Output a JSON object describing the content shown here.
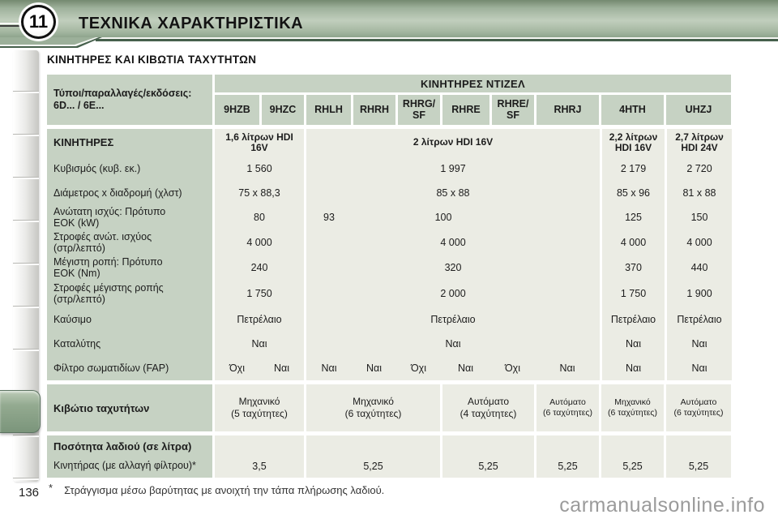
{
  "page": {
    "chapter_number": "11",
    "title": "ΤΕΧΝΙΚΑ ΧΑΡΑΚΤΗΡΙΣΤΙΚΑ",
    "section_heading": "ΚΙΝΗΤΗΡΕΣ ΚΑΙ ΚΙΒΩΤΙΑ ΤΑΧΥΤΗΤΩΝ",
    "page_number": "136",
    "footnote_marker": "*",
    "footnote_text": "Στράγγισμα μέσω βαρύτητας με ανοιχτή την τάπα πλήρωσης λαδιού.",
    "watermark": "carmanualsonline.info"
  },
  "colors": {
    "header_cell_green": "#c6d2c3",
    "data_cell_gray": "#ebece4",
    "band_sage": "#9fb29c",
    "band_edge_dark_green": "#46604c"
  },
  "table": {
    "types_header": "Τύποι/παραλλαγές/εκδόσεις:\n6D... / 6E...",
    "group_header": "ΚΙΝΗΤΗΡΕΣ ΝΤΙΖΕΛ",
    "engine_codes": [
      "9HZB",
      "9HZC",
      "RHLH",
      "RHRH",
      "RHRG/\nSF",
      "RHRE",
      "RHRE/\nSF",
      "RHRJ",
      "4HTH",
      "UHZJ"
    ],
    "row_labels": {
      "engines": "ΚΙΝΗΤΗΡΕΣ",
      "displacement": "Κυβισμός (κυβ. εκ.)",
      "bore_stroke": "Διάμετρος x διαδρομή (χλστ)",
      "max_power": "Ανώτατη ισχύς: Πρότυπο\nΕΟΚ (kW)",
      "power_rpm": "Στροφές ανώτ. ισχύος\n(στρ/λεπτό)",
      "max_torque": "Μέγιστη ροπή: Πρότυπο\nΕΟΚ (Nm)",
      "torque_rpm": "Στροφές μέγιστης ροπής\n(στρ/λεπτό)",
      "fuel": "Καύσιμο",
      "catalyst": "Καταλύτης",
      "fap": "Φίλτρο σωματιδίων (FAP)",
      "gearbox": "Κιβώτιο ταχυτήτων",
      "oil_quantity": "Ποσότητα λαδιού (σε λίτρα)",
      "oil_engine": "Κινητήρας (με αλλαγή φίλτρου)*"
    },
    "engine_1_6": {
      "name": "1,6 λίτρων HDI\n16V",
      "displacement": "1 560",
      "bore_stroke": "75 x 88,3",
      "max_power": "80",
      "power_rpm": "4 000",
      "max_torque": "240",
      "torque_rpm": "1 750",
      "fuel": "Πετρέλαιο",
      "catalyst": "Ναι",
      "fap": [
        "Όχι",
        "Ναι"
      ],
      "gearbox": "Μηχανικό\n(5 ταχύτητες)",
      "oil": "3,5"
    },
    "engine_2_0": {
      "name": "2 λίτρων HDI 16V",
      "displacement": "1 997",
      "bore_stroke": "85 x 88",
      "max_power_rhlh": "93",
      "max_power": "100",
      "power_rpm": "4 000",
      "max_torque": "320",
      "torque_rpm": "2 000",
      "fuel": "Πετρέλαιο",
      "catalyst": "Ναι",
      "fap": [
        "Ναι",
        "Ναι",
        "Όχι",
        "Ναι",
        "Όχι",
        "Ναι"
      ],
      "gearbox_manual": "Μηχανικό\n(6 ταχύτητες)",
      "gearbox_auto4": "Αυτόματο\n(4 ταχύτητες)",
      "gearbox_auto6": "Αυτόματο\n(6 ταχύτητες)",
      "oil_manual": "5,25",
      "oil_auto4": "5,25",
      "oil_auto6": "5,25"
    },
    "engine_2_2": {
      "name": "2,2 λίτρων\nHDI 16V",
      "displacement": "2 179",
      "bore_stroke": "85 x 96",
      "max_power": "125",
      "power_rpm": "4 000",
      "max_torque": "370",
      "torque_rpm": "1 750",
      "fuel": "Πετρέλαιο",
      "catalyst": "Ναι",
      "fap": "Ναι",
      "gearbox": "Μηχανικό\n(6 ταχύτητες)",
      "oil": "5,25"
    },
    "engine_2_7": {
      "name": "2,7 λίτρων\nHDI 24V",
      "displacement": "2 720",
      "bore_stroke": "81 x 88",
      "max_power": "150",
      "power_rpm": "4 000",
      "max_torque": "440",
      "torque_rpm": "1 900",
      "fuel": "Πετρέλαιο",
      "catalyst": "Ναι",
      "fap": "Ναι",
      "gearbox": "Αυτόματο\n(6 ταχύτητες)",
      "oil": "5,25"
    }
  }
}
